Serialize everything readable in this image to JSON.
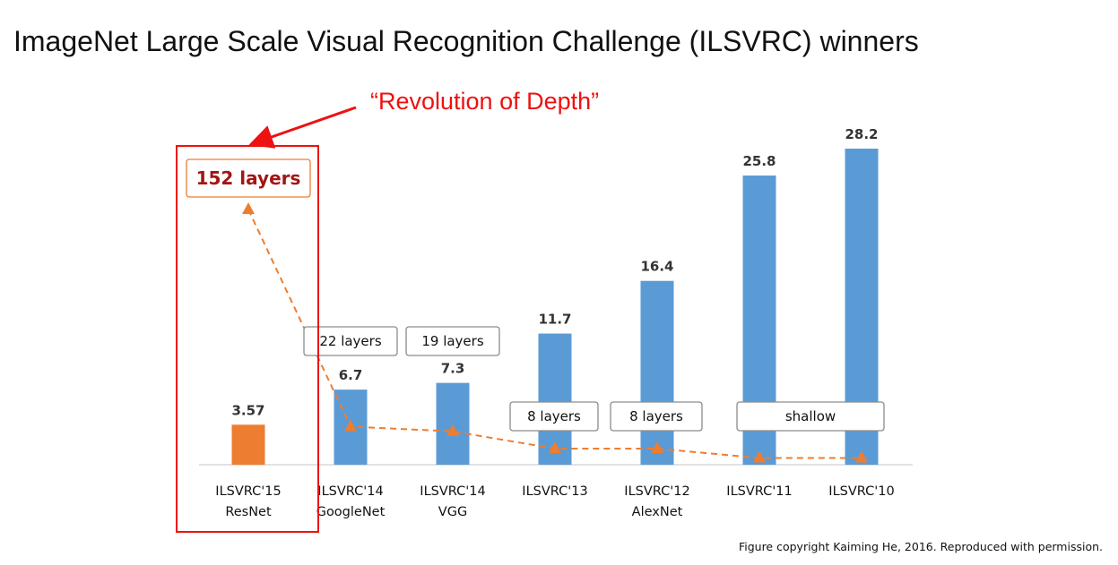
{
  "title": "ImageNet Large Scale Visual Recognition Challenge (ILSVRC) winners",
  "credit": "Figure copyright Kaiming He, 2016. Reproduced with permission.",
  "callout": "“Revolution of Depth”",
  "colors": {
    "bar": "#5b9bd5",
    "highlight_bar": "#ed7d31",
    "callout": "#ee1111",
    "highlight_text": "#a31515"
  },
  "chart_data": {
    "type": "bar",
    "title": "",
    "xlabel": "",
    "ylabel": "",
    "ylim": [
      0,
      30
    ],
    "grid": false,
    "categories": [
      [
        "ILSVRC'15",
        "ResNet"
      ],
      [
        "ILSVRC'14",
        "GoogleNet"
      ],
      [
        "ILSVRC'14",
        "VGG"
      ],
      [
        "ILSVRC'13"
      ],
      [
        "ILSVRC'12",
        "AlexNet"
      ],
      [
        "ILSVRC'11"
      ],
      [
        "ILSVRC'10"
      ]
    ],
    "values": [
      3.57,
      6.7,
      7.3,
      11.7,
      16.4,
      25.8,
      28.2
    ],
    "value_labels": [
      "3.57",
      "6.7",
      "7.3",
      "11.7",
      "16.4",
      "25.8",
      "28.2"
    ],
    "highlight_index": 0,
    "depth_labels": [
      "152 layers",
      "22 layers",
      "19 layers",
      "8 layers",
      "8 layers",
      "shallow"
    ],
    "depth_line": {
      "values": [
        152,
        22,
        19,
        8,
        8,
        2,
        2
      ]
    }
  }
}
